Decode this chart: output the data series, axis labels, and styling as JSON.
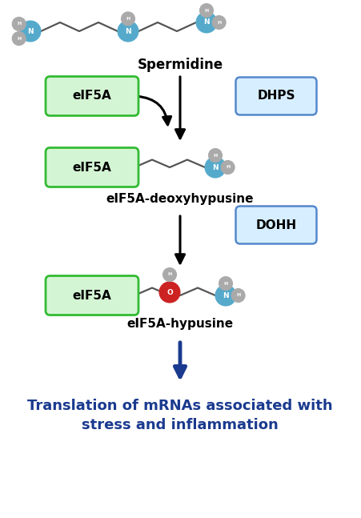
{
  "bg_color": "#ffffff",
  "blue_arrow_color": "#1a3a8f",
  "eif5a_box_color": "#d4f5d4",
  "eif5a_border_color": "#33bb33",
  "side_box_color": "#d6eeff",
  "side_box_border": "#5588cc",
  "n_color": "#55aacc",
  "h_color": "#aaaaaa",
  "o_color": "#cc2222",
  "chain_color": "#555555",
  "label_spermidine": "Spermidine",
  "label_eif5a_deoxy": "eIF5A-deoxyhypusine",
  "label_eif5a_hyp": "eIF5A-hypusine",
  "label_dhps": "DHPS",
  "label_dohh": "DOHH",
  "label_eif5a": "eIF5A",
  "label_translation": "Translation of mRNAs associated with\nstress and inflammation",
  "translation_color": "#1a3a8f"
}
